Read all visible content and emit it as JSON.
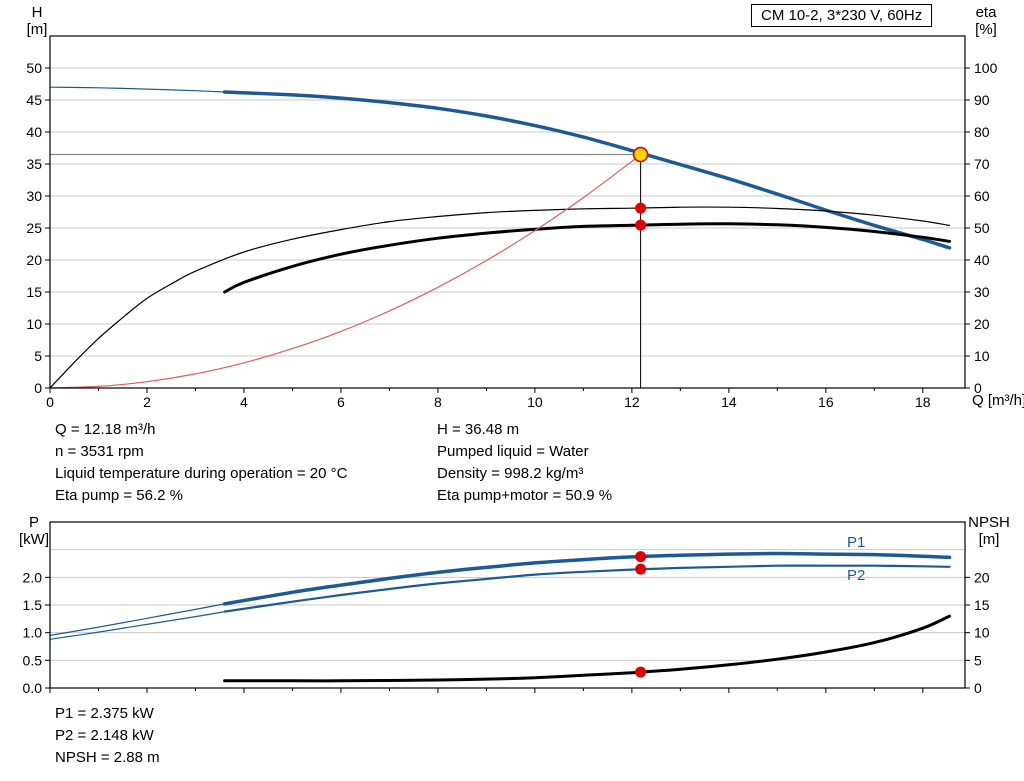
{
  "header": {
    "title_box": "CM 10-2, 3*230 V, 60Hz"
  },
  "axis_titles": {
    "top_left_1": "H",
    "top_left_2": "[m]",
    "top_right_1": "eta",
    "top_right_2": "[%]",
    "x": "Q [m³/h]",
    "bottom_left_1": "P",
    "bottom_left_2": "[kW]",
    "bottom_right_1": "NPSH",
    "bottom_right_2": "[m]"
  },
  "curve_labels": {
    "p1": "P1",
    "p2": "P2"
  },
  "operating_info": {
    "left": [
      "Q = 12.18 m³/h",
      "n = 3531 rpm",
      "Liquid temperature during operation = 20 °C",
      "Eta pump = 56.2 %"
    ],
    "right": [
      "H = 36.48 m",
      "Pumped liquid = Water",
      "Density = 998.2 kg/m³",
      "Eta pump+motor = 50.9 %"
    ],
    "bottom": [
      "P1 = 2.375 kW",
      "P2 = 2.148 kW",
      "NPSH = 2.88 m"
    ]
  },
  "colors": {
    "curve_blue": "#1c5a96",
    "curve_black": "#000000",
    "curve_red": "#e05e5e",
    "marker_red": "#e10000",
    "duty_yellow": "#ffd500",
    "grid": "#c9c9c9"
  },
  "chart_data": [
    {
      "type": "line",
      "title": "CM 10-2, 3*230 V, 60Hz",
      "x_axis": {
        "label": "Q [m³/h]",
        "min": 0,
        "max": 18.87,
        "major_ticks": [
          0,
          2,
          4,
          6,
          8,
          10,
          12,
          14,
          16,
          18
        ],
        "minor_step": 1,
        "show_labels": true
      },
      "y_left": {
        "label": "H [m]",
        "min": 0,
        "max": 55,
        "ticks": [
          0,
          5,
          10,
          15,
          20,
          25,
          30,
          35,
          40,
          45,
          50
        ],
        "grid": [
          5,
          10,
          15,
          20,
          25,
          30,
          35,
          40,
          45,
          50
        ]
      },
      "y_right": {
        "label": "eta [%]",
        "min": 0,
        "max": 110,
        "ticks": [
          0,
          10,
          20,
          30,
          40,
          50,
          60,
          70,
          80,
          90,
          100
        ]
      },
      "series": [
        {
          "name": "head-curve-thin",
          "axis": "y_left",
          "color": "#1c5a96",
          "width": 1.2,
          "points": [
            [
              0,
              47
            ],
            [
              1,
              46.9
            ],
            [
              2,
              46.7
            ],
            [
              3,
              46.45
            ],
            [
              3.6,
              46.25
            ]
          ]
        },
        {
          "name": "head-curve",
          "axis": "y_left",
          "color": "#1c5a96",
          "width": 3.5,
          "points": [
            [
              3.6,
              46.25
            ],
            [
              5,
              45.8
            ],
            [
              6,
              45.3
            ],
            [
              7,
              44.6
            ],
            [
              8,
              43.7
            ],
            [
              9,
              42.5
            ],
            [
              10,
              41.0
            ],
            [
              11,
              39.2
            ],
            [
              12,
              37.1
            ],
            [
              13,
              34.9
            ],
            [
              14,
              32.7
            ],
            [
              15,
              30.3
            ],
            [
              16,
              27.8
            ],
            [
              17,
              25.4
            ],
            [
              18,
              23.2
            ],
            [
              18.55,
              21.9
            ]
          ]
        },
        {
          "name": "eta-pump-curve",
          "axis": "y_right",
          "color": "#000000",
          "width": 1.2,
          "points": [
            [
              0,
              0
            ],
            [
              0.5,
              8
            ],
            [
              1,
              15.5
            ],
            [
              1.5,
              22
            ],
            [
              2,
              28
            ],
            [
              2.5,
              32.5
            ],
            [
              3,
              36.5
            ],
            [
              4,
              42.5
            ],
            [
              5,
              46.5
            ],
            [
              6,
              49.5
            ],
            [
              7,
              52
            ],
            [
              8,
              53.6
            ],
            [
              9,
              54.8
            ],
            [
              10,
              55.5
            ],
            [
              11,
              56
            ],
            [
              12,
              56.2
            ],
            [
              13,
              56.5
            ],
            [
              14,
              56.5
            ],
            [
              15,
              56.1
            ],
            [
              16,
              55.3
            ],
            [
              17,
              54
            ],
            [
              18,
              52.2
            ],
            [
              18.55,
              50.8
            ]
          ]
        },
        {
          "name": "eta-pump-motor-curve",
          "axis": "y_right",
          "color": "#000000",
          "width": 3,
          "points": [
            [
              3.6,
              30
            ],
            [
              4,
              33
            ],
            [
              5,
              38
            ],
            [
              6,
              41.8
            ],
            [
              7,
              44.6
            ],
            [
              8,
              46.8
            ],
            [
              9,
              48.4
            ],
            [
              10,
              49.6
            ],
            [
              11,
              50.5
            ],
            [
              12,
              50.85
            ],
            [
              13,
              51.2
            ],
            [
              14,
              51.3
            ],
            [
              15,
              51
            ],
            [
              16,
              50.2
            ],
            [
              17,
              48.9
            ],
            [
              18,
              47.1
            ],
            [
              18.55,
              45.8
            ]
          ]
        },
        {
          "name": "system-curve",
          "axis": "y_left",
          "color": "#e05e5e",
          "width": 1.2,
          "points": [
            [
              0,
              0
            ],
            [
              1,
              0.25
            ],
            [
              2,
              0.98
            ],
            [
              3,
              2.21
            ],
            [
              4,
              3.93
            ],
            [
              5,
              6.15
            ],
            [
              6,
              8.85
            ],
            [
              7,
              12.05
            ],
            [
              8,
              15.74
            ],
            [
              9,
              19.92
            ],
            [
              10,
              24.59
            ],
            [
              11,
              29.75
            ],
            [
              12,
              35.41
            ],
            [
              12.18,
              36.48
            ]
          ]
        }
      ],
      "reference_lines": [
        {
          "name": "duty-horizontal-line",
          "orient": "h",
          "axis": "y_left",
          "value": 36.48,
          "from_x": 0,
          "to_x": 12.18,
          "color": "#8a8a8a",
          "width": 1.3
        },
        {
          "name": "duty-vertical-line",
          "orient": "v",
          "axis": "y_left",
          "x": 12.18,
          "from": 0,
          "to": 36.48,
          "color": "#000000",
          "width": 1
        }
      ],
      "markers": [
        {
          "name": "duty-point",
          "x": 12.18,
          "value": 36.48,
          "axis": "y_left",
          "r": 7,
          "fill": "#ffd500",
          "stroke": "#e10000"
        },
        {
          "name": "eta-pump-point",
          "x": 12.18,
          "value": 56.2,
          "axis": "y_right",
          "r": 5.5,
          "fill": "#e10000"
        },
        {
          "name": "eta-pump-motor-point",
          "x": 12.18,
          "value": 50.9,
          "axis": "y_right",
          "r": 5.5,
          "fill": "#e10000"
        }
      ]
    },
    {
      "type": "line",
      "x_axis": {
        "min": 0,
        "max": 18.87,
        "major_ticks": [
          0,
          2,
          4,
          6,
          8,
          10,
          12,
          14,
          16,
          18
        ],
        "minor_step": 1,
        "show_labels": false
      },
      "y_left": {
        "label": "P [kW]",
        "min": 0,
        "max": 3,
        "ticks": [
          0,
          0.5,
          1,
          1.5,
          2
        ],
        "tick_labels": [
          "0.0",
          "0.5",
          "1.0",
          "1.5",
          "2.0"
        ],
        "grid": [
          0.5,
          1,
          1.5,
          2,
          2.5
        ]
      },
      "y_right": {
        "label": "NPSH [m]",
        "min": 0,
        "max": 30,
        "ticks": [
          0,
          5,
          10,
          15,
          20
        ]
      },
      "series": [
        {
          "name": "p1-curve-thin",
          "axis": "y_left",
          "color": "#1c5a96",
          "width": 1.2,
          "points": [
            [
              0,
              0.95
            ],
            [
              1,
              1.1
            ],
            [
              2,
              1.26
            ],
            [
              3,
              1.42
            ],
            [
              3.6,
              1.52
            ]
          ]
        },
        {
          "name": "p1-curve",
          "axis": "y_left",
          "color": "#1c5a96",
          "width": 3.5,
          "points": [
            [
              3.6,
              1.52
            ],
            [
              5,
              1.73
            ],
            [
              6,
              1.86
            ],
            [
              7,
              1.98
            ],
            [
              8,
              2.09
            ],
            [
              9,
              2.18
            ],
            [
              10,
              2.26
            ],
            [
              11,
              2.32
            ],
            [
              12,
              2.37
            ],
            [
              13,
              2.4
            ],
            [
              14,
              2.42
            ],
            [
              15,
              2.43
            ],
            [
              16,
              2.42
            ],
            [
              17,
              2.41
            ],
            [
              18,
              2.38
            ],
            [
              18.55,
              2.36
            ]
          ]
        },
        {
          "name": "p2-curve-thin",
          "axis": "y_left",
          "color": "#1c5a96",
          "width": 1.2,
          "points": [
            [
              0,
              0.88
            ],
            [
              1,
              1.01
            ],
            [
              2,
              1.15
            ],
            [
              3,
              1.29
            ],
            [
              3.6,
              1.38
            ]
          ]
        },
        {
          "name": "p2-curve",
          "axis": "y_left",
          "color": "#1c5a96",
          "width": 2.2,
          "points": [
            [
              3.6,
              1.38
            ],
            [
              5,
              1.56
            ],
            [
              6,
              1.68
            ],
            [
              7,
              1.79
            ],
            [
              8,
              1.89
            ],
            [
              9,
              1.97
            ],
            [
              10,
              2.05
            ],
            [
              11,
              2.1
            ],
            [
              12,
              2.14
            ],
            [
              13,
              2.17
            ],
            [
              14,
              2.19
            ],
            [
              15,
              2.21
            ],
            [
              16,
              2.21
            ],
            [
              17,
              2.21
            ],
            [
              18,
              2.2
            ],
            [
              18.55,
              2.19
            ]
          ]
        },
        {
          "name": "npsh-curve",
          "axis": "y_right",
          "color": "#000000",
          "width": 3,
          "points": [
            [
              3.6,
              1.3
            ],
            [
              5,
              1.3
            ],
            [
              6,
              1.3
            ],
            [
              7,
              1.35
            ],
            [
              8,
              1.45
            ],
            [
              9,
              1.6
            ],
            [
              10,
              1.85
            ],
            [
              11,
              2.3
            ],
            [
              12,
              2.75
            ],
            [
              12.18,
              2.88
            ],
            [
              13,
              3.4
            ],
            [
              14,
              4.2
            ],
            [
              15,
              5.2
            ],
            [
              16,
              6.5
            ],
            [
              17,
              8.2
            ],
            [
              18,
              10.8
            ],
            [
              18.55,
              13.0
            ]
          ]
        }
      ],
      "reference_lines": [],
      "markers": [
        {
          "name": "p1-point",
          "x": 12.18,
          "value": 2.375,
          "axis": "y_left",
          "r": 5.5,
          "fill": "#e10000"
        },
        {
          "name": "p2-point",
          "x": 12.18,
          "value": 2.148,
          "axis": "y_left",
          "r": 5.5,
          "fill": "#e10000"
        },
        {
          "name": "npsh-point",
          "x": 12.18,
          "value": 2.88,
          "axis": "y_right",
          "r": 5.5,
          "fill": "#e10000"
        }
      ]
    }
  ]
}
